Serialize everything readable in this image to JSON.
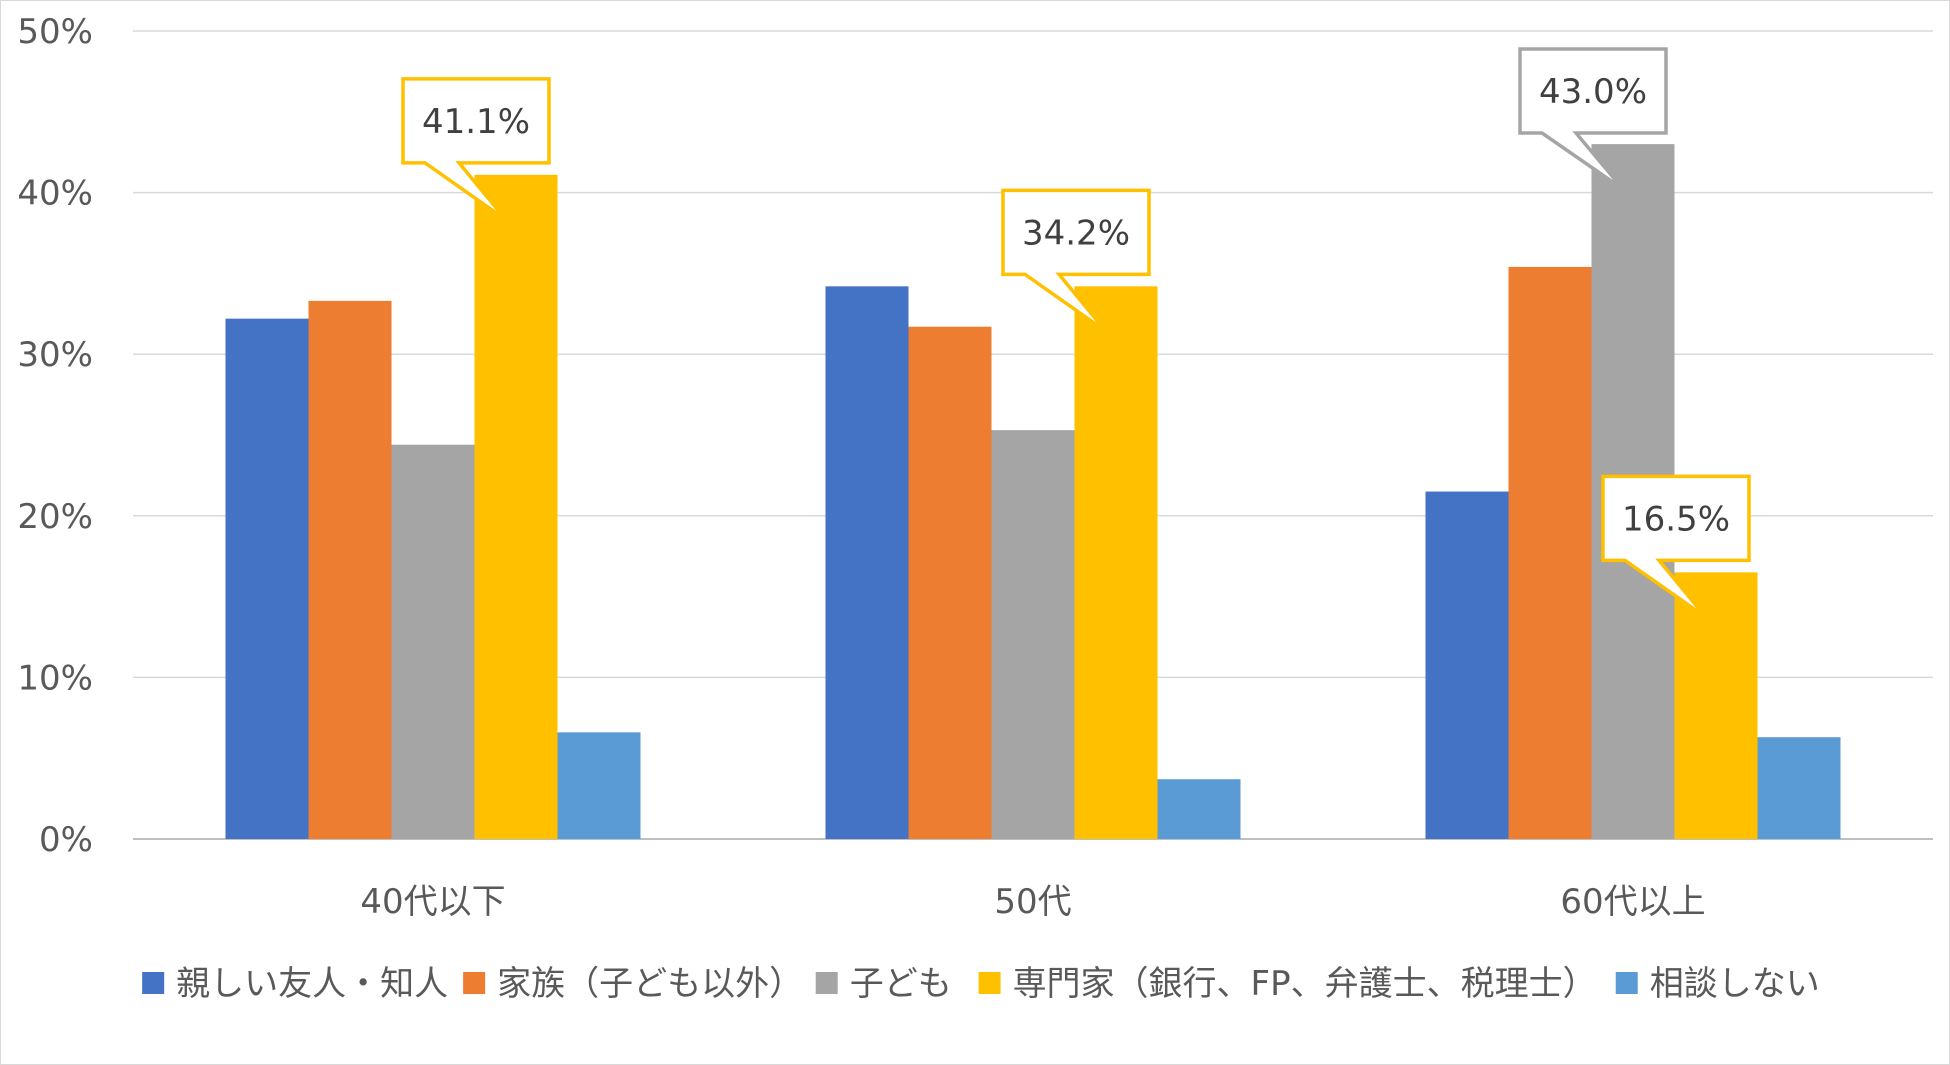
{
  "chart_data": {
    "type": "bar",
    "categories": [
      "40代以下",
      "50代",
      "60代以上"
    ],
    "series": [
      {
        "name": "親しい友人・知人",
        "color": "#4472C4",
        "values": [
          32.2,
          34.2,
          21.5
        ]
      },
      {
        "name": "家族（子ども以外）",
        "color": "#ED7D31",
        "values": [
          33.3,
          31.7,
          35.4
        ]
      },
      {
        "name": "子ども",
        "color": "#A5A5A5",
        "values": [
          24.4,
          25.3,
          43.0
        ]
      },
      {
        "name": "専門家（銀行、FP、弁護士、税理士）",
        "color": "#FFC000",
        "values": [
          41.1,
          34.2,
          16.5
        ]
      },
      {
        "name": "相談しない",
        "color": "#5B9BD5",
        "values": [
          6.6,
          3.7,
          6.3
        ]
      }
    ],
    "ylim": [
      0,
      50
    ],
    "yticks": [
      0,
      10,
      20,
      30,
      40,
      50
    ],
    "ytick_labels": [
      "0%",
      "10%",
      "20%",
      "30%",
      "40%",
      "50%"
    ],
    "grid": true,
    "legend_position": "bottom",
    "annotations": [
      {
        "category_index": 0,
        "series_index": 3,
        "text": "41.1%",
        "border_color": "#FFC000"
      },
      {
        "category_index": 1,
        "series_index": 3,
        "text": "34.2%",
        "border_color": "#FFC000"
      },
      {
        "category_index": 2,
        "series_index": 2,
        "text": "43.0%",
        "border_color": "#A5A5A5"
      },
      {
        "category_index": 2,
        "series_index": 3,
        "text": "16.5%",
        "border_color": "#FFC000"
      }
    ]
  }
}
